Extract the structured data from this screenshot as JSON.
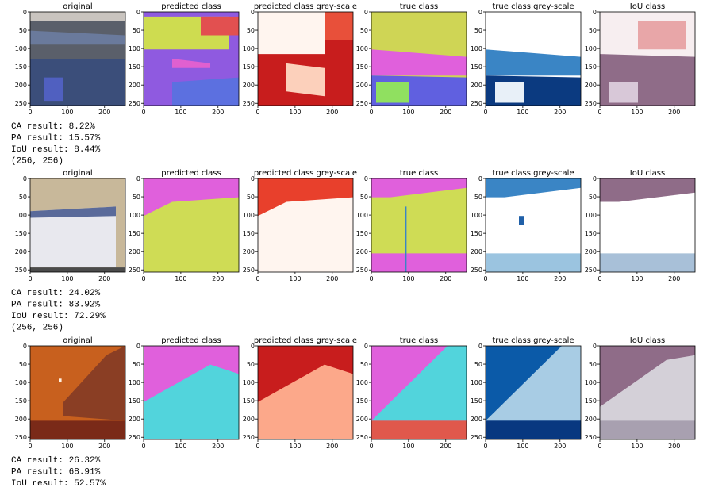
{
  "axes": {
    "xticks": [
      0,
      100,
      200
    ],
    "yticks": [
      0,
      50,
      100,
      150,
      200,
      250
    ]
  },
  "rows": [
    {
      "titles": [
        "original",
        "predicted class",
        "predicted class grey-scale",
        "true class",
        "true class grey-scale",
        "IoU class"
      ],
      "results": [
        "CA result: 8.22%",
        "PA result: 15.57%",
        "IoU result: 8.44%",
        "(256, 256)"
      ]
    },
    {
      "titles": [
        "original",
        "predicted class",
        "predicted class grey-scale",
        "true class",
        "true class grey-scale",
        "IoU class"
      ],
      "results": [
        "CA result: 24.02%",
        "PA result: 83.92%",
        "IoU result: 72.29%",
        "(256, 256)"
      ]
    },
    {
      "titles": [
        "original",
        "predicted class",
        "predicted class grey-scale",
        "true class",
        "true class grey-scale",
        "IoU class"
      ],
      "results": [
        "CA result: 26.32%",
        "PA result: 68.91%",
        "IoU result: 52.57%"
      ]
    }
  ]
}
